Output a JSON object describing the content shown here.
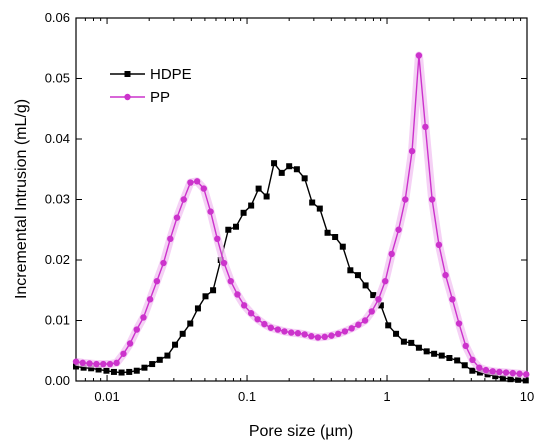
{
  "chart_data": {
    "type": "line",
    "title": "",
    "xlabel": "Pore size (µm)",
    "ylabel": "Incremental Intrusion (mL/g)",
    "x_scale": "log",
    "xlim": [
      0.006,
      10
    ],
    "ylim": [
      0,
      0.06
    ],
    "x_ticks": [
      0.01,
      0.1,
      1,
      10
    ],
    "x_tick_labels": [
      "0.01",
      "0.1",
      "1",
      "10"
    ],
    "y_ticks": [
      0,
      0.01,
      0.02,
      0.03,
      0.04,
      0.05,
      0.06
    ],
    "y_tick_labels": [
      "0.00",
      "0.01",
      "0.02",
      "0.03",
      "0.04",
      "0.05",
      "0.06"
    ],
    "grid": false,
    "legend_position": "top-left",
    "series": [
      {
        "name": "HDPE",
        "color": "#000000",
        "marker": "square",
        "x": [
          0.006,
          0.0068,
          0.0077,
          0.0087,
          0.0099,
          0.0112,
          0.0127,
          0.0144,
          0.0163,
          0.0185,
          0.021,
          0.0238,
          0.027,
          0.0306,
          0.0347,
          0.0393,
          0.0446,
          0.0505,
          0.0572,
          0.0649,
          0.0735,
          0.0834,
          0.0945,
          0.107,
          0.121,
          0.138,
          0.156,
          0.177,
          0.2,
          0.227,
          0.258,
          0.292,
          0.331,
          0.376,
          0.426,
          0.483,
          0.547,
          0.62,
          0.703,
          0.797,
          0.904,
          1.02,
          1.16,
          1.32,
          1.49,
          1.69,
          1.92,
          2.17,
          2.46,
          2.79,
          3.17,
          3.59,
          4.07,
          4.61,
          5.23,
          5.93,
          6.72,
          7.62,
          8.64,
          9.8
        ],
        "y": [
          0.0024,
          0.0022,
          0.0021,
          0.0019,
          0.0017,
          0.0015,
          0.0014,
          0.0015,
          0.0017,
          0.0022,
          0.0028,
          0.0035,
          0.0042,
          0.006,
          0.0078,
          0.0095,
          0.012,
          0.014,
          0.015,
          0.02,
          0.025,
          0.0255,
          0.0278,
          0.029,
          0.0318,
          0.0305,
          0.036,
          0.0344,
          0.0355,
          0.035,
          0.0335,
          0.0295,
          0.0285,
          0.0245,
          0.0238,
          0.0222,
          0.0183,
          0.0175,
          0.0158,
          0.0142,
          0.0125,
          0.0092,
          0.0078,
          0.0065,
          0.0063,
          0.0055,
          0.0049,
          0.0045,
          0.0042,
          0.0038,
          0.0034,
          0.0026,
          0.0017,
          0.0014,
          0.0011,
          0.0008,
          0.0005,
          0.0003,
          0.0002,
          0.0001
        ]
      },
      {
        "name": "PP",
        "color": "#cc33cc",
        "marker": "circle",
        "x": [
          0.006,
          0.0067,
          0.0075,
          0.0084,
          0.0094,
          0.0105,
          0.0117,
          0.0131,
          0.0146,
          0.0163,
          0.0182,
          0.0203,
          0.0227,
          0.0253,
          0.0283,
          0.0316,
          0.0353,
          0.0394,
          0.044,
          0.0491,
          0.0549,
          0.0613,
          0.0685,
          0.0765,
          0.0854,
          0.0954,
          0.107,
          0.119,
          0.133,
          0.148,
          0.166,
          0.185,
          0.207,
          0.231,
          0.258,
          0.288,
          0.321,
          0.359,
          0.401,
          0.448,
          0.5,
          0.559,
          0.624,
          0.697,
          0.778,
          0.869,
          0.971,
          1.08,
          1.21,
          1.35,
          1.51,
          1.69,
          1.88,
          2.1,
          2.35,
          2.62,
          2.93,
          3.27,
          3.65,
          4.08,
          4.56,
          5.09,
          5.69,
          6.35,
          7.09,
          7.92,
          8.85,
          9.88
        ],
        "y": [
          0.0032,
          0.003,
          0.0029,
          0.0028,
          0.0028,
          0.0028,
          0.003,
          0.0045,
          0.0062,
          0.0085,
          0.0105,
          0.0135,
          0.0165,
          0.0195,
          0.0235,
          0.027,
          0.03,
          0.0328,
          0.033,
          0.0318,
          0.028,
          0.0235,
          0.0195,
          0.0165,
          0.0143,
          0.0125,
          0.0112,
          0.0102,
          0.0094,
          0.0088,
          0.0085,
          0.0082,
          0.008,
          0.0079,
          0.0077,
          0.0074,
          0.0072,
          0.0073,
          0.0075,
          0.0078,
          0.0082,
          0.0087,
          0.0093,
          0.01,
          0.0115,
          0.0135,
          0.0165,
          0.021,
          0.025,
          0.03,
          0.038,
          0.0538,
          0.042,
          0.03,
          0.0225,
          0.0175,
          0.0135,
          0.0095,
          0.0058,
          0.0035,
          0.0022,
          0.0018,
          0.0016,
          0.0015,
          0.0014,
          0.0013,
          0.0012,
          0.0011
        ]
      }
    ]
  }
}
